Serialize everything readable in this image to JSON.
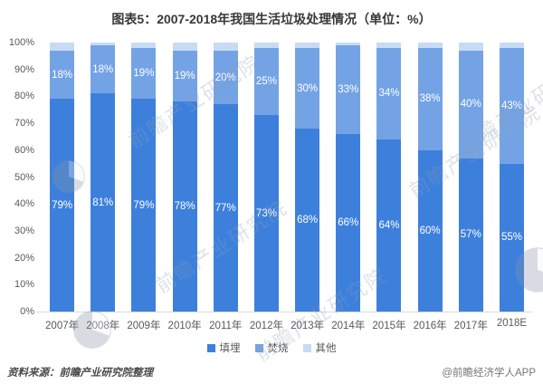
{
  "title": "图表5：2007-2018年我国生活垃圾处理情况（单位：%）",
  "chart_data": {
    "type": "bar",
    "stacked": true,
    "title": "图表5：2007-2018年我国生活垃圾处理情况（单位：%）",
    "categories": [
      "2007年",
      "2008年",
      "2009年",
      "2010年",
      "2011年",
      "2012年",
      "2013年",
      "2014年",
      "2015年",
      "2016年",
      "2017年",
      "2018E"
    ],
    "series": [
      {
        "name": "填埋",
        "color": "#3D80DC",
        "labels_visible": true,
        "values": [
          79,
          81,
          79,
          78,
          77,
          73,
          68,
          66,
          64,
          60,
          57,
          55
        ]
      },
      {
        "name": "焚烧",
        "color": "#74A3E5",
        "labels_visible": true,
        "values": [
          18,
          18,
          19,
          19,
          20,
          25,
          30,
          33,
          34,
          38,
          40,
          43
        ]
      },
      {
        "name": "其他",
        "color": "#C7DBF4",
        "labels_visible": false,
        "values": [
          3,
          1,
          2,
          3,
          3,
          2,
          2,
          1,
          2,
          2,
          3,
          2
        ]
      }
    ],
    "label_suffix": "%",
    "yticks": [
      "0%",
      "10%",
      "20%",
      "30%",
      "40%",
      "50%",
      "60%",
      "70%",
      "80%",
      "90%",
      "100%"
    ],
    "ylim": [
      0,
      100
    ],
    "grid": false,
    "legend_position": "bottom",
    "xlabel": "",
    "ylabel": ""
  },
  "footer": {
    "source": "资料来源：前瞻产业研究院整理",
    "credit": "@前瞻经济学人APP"
  },
  "watermark": {
    "text": "前瞻产业研究院"
  },
  "colors": {
    "axis_text": "#595959",
    "title_text": "#383838",
    "bar_label": "#FFFFFF",
    "axis_line": "#D9D9D9"
  }
}
